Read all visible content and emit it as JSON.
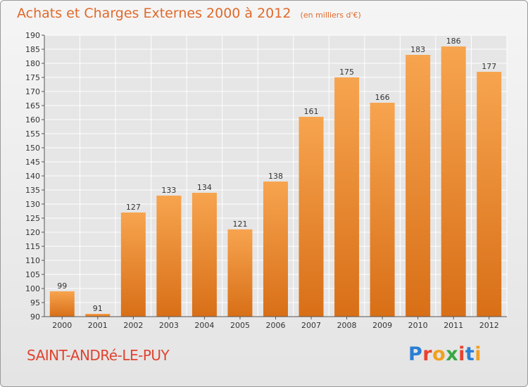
{
  "header": {
    "title": "Achats et Charges Externes 2000 à 2012",
    "unit": "(en milliers d'€)"
  },
  "footer": {
    "place": "SAINT-ANDRé-LE-PUY",
    "logo_text": "Proxiti",
    "logo_colors": [
      "#2a7fd4",
      "#e8432e",
      "#f2a021",
      "#3aa845",
      "#e8432e",
      "#2a7fd4",
      "#f2a021"
    ]
  },
  "colors": {
    "bar_top": "#f7a44f",
    "bar_bottom": "#d86f17",
    "grid": "#ffffff",
    "title": "#e0692a"
  },
  "chart_data": {
    "type": "bar",
    "title": "Achats et Charges Externes 2000 à 2012",
    "subtitle": "(en milliers d'€)",
    "categories": [
      "2000",
      "2001",
      "2002",
      "2003",
      "2004",
      "2005",
      "2006",
      "2007",
      "2008",
      "2009",
      "2010",
      "2011",
      "2012"
    ],
    "values": [
      99,
      91,
      127,
      133,
      134,
      121,
      138,
      161,
      175,
      166,
      183,
      186,
      177
    ],
    "ylim": [
      90,
      190
    ],
    "ytick_step": 5,
    "grid": true,
    "legend": false,
    "data_labels": true
  }
}
